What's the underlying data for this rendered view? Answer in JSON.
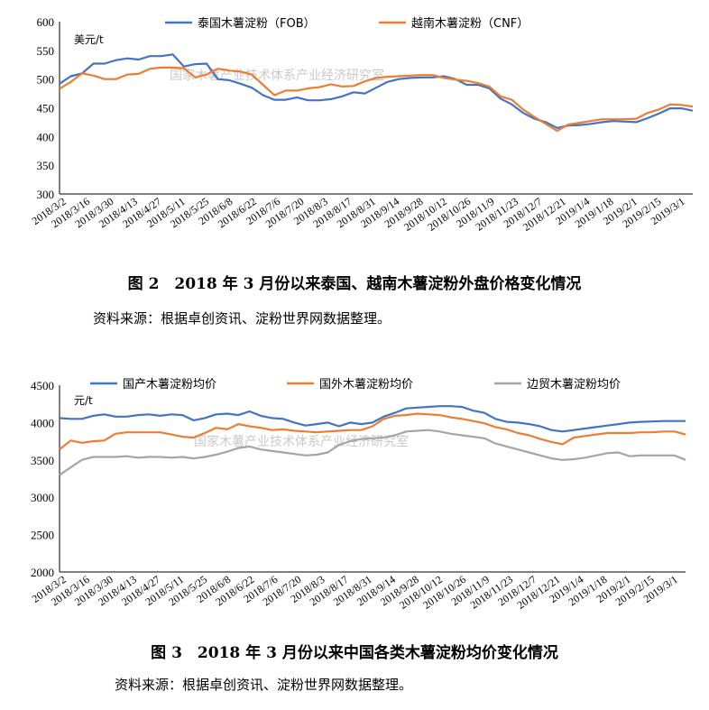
{
  "chart_data": [
    {
      "type": "line",
      "title": "",
      "unit": "美元/t",
      "ylim": [
        300,
        600
      ],
      "yticks": [
        300,
        350,
        400,
        450,
        500,
        550,
        600
      ],
      "xticks": [
        "2018/3/2",
        "2018/3/16",
        "2018/3/30",
        "2018/4/13",
        "2018/4/27",
        "2018/5/11",
        "2018/5/25",
        "2018/6/8",
        "2018/6/22",
        "2018/7/6",
        "2018/7/20",
        "2018/8/3",
        "2018/8/17",
        "2018/8/31",
        "2018/9/14",
        "2018/9/28",
        "2018/10/12",
        "2018/10/26",
        "2018/11/9",
        "2018/11/23",
        "2018/12/7",
        "2018/12/21",
        "2019/1/4",
        "2019/1/18",
        "2019/2/1",
        "2019/2/15",
        "2019/3/1"
      ],
      "legend_position": "top",
      "watermark": "国家木薯产业技术体系产业经济研究室",
      "series": [
        {
          "name": "泰国木薯淀粉（FOB）",
          "color": "#4472C4",
          "values": [
            492,
            505,
            510,
            527,
            527,
            533,
            536,
            534,
            540,
            540,
            543,
            522,
            526,
            527,
            500,
            498,
            492,
            485,
            472,
            464,
            464,
            468,
            463,
            463,
            465,
            470,
            477,
            475,
            485,
            495,
            500,
            502,
            503,
            503,
            505,
            500,
            490,
            490,
            484,
            466,
            456,
            441,
            431,
            425,
            415,
            419,
            420,
            422,
            425,
            427,
            426,
            425,
            432,
            440,
            449,
            449,
            445
          ]
        },
        {
          "name": "越南木薯淀粉（CNF）",
          "color": "#ED7D31",
          "values": [
            483,
            495,
            510,
            506,
            500,
            500,
            508,
            509,
            518,
            520,
            520,
            519,
            503,
            508,
            518,
            515,
            513,
            508,
            490,
            472,
            480,
            480,
            484,
            486,
            491,
            487,
            488,
            496,
            502,
            504,
            505,
            506,
            507,
            507,
            502,
            499,
            497,
            493,
            487,
            470,
            464,
            447,
            434,
            422,
            410,
            421,
            424,
            427,
            430,
            430,
            430,
            431,
            441,
            447,
            456,
            455,
            452
          ]
        }
      ]
    },
    {
      "type": "line",
      "title": "",
      "unit": "元/t",
      "ylim": [
        2000,
        4500
      ],
      "yticks": [
        2000,
        2500,
        3000,
        3500,
        4000,
        4500
      ],
      "xticks": [
        "2018/3/2",
        "2018/3/16",
        "2018/3/30",
        "2018/4/13",
        "2018/4/27",
        "2018/5/11",
        "2018/5/25",
        "2018/6/8",
        "2018/6/22",
        "2018/7/6",
        "2018/7/20",
        "2018/8/3",
        "2018/8/17",
        "2018/8/31",
        "2018/9/14",
        "2018/9/28",
        "2018/10/12",
        "2018/10/26",
        "2018/11/9",
        "2018/11/23",
        "2018/12/7",
        "2018/12/21",
        "2019/1/4",
        "2019/1/18",
        "2019/2/1",
        "2019/2/15",
        "2019/3/1"
      ],
      "legend_position": "top",
      "watermark": "国家木薯产业技术体系产业经济研究室",
      "series": [
        {
          "name": "国产木薯淀粉均价",
          "color": "#4472C4",
          "values": [
            4060,
            4050,
            4050,
            4090,
            4110,
            4080,
            4080,
            4100,
            4110,
            4090,
            4110,
            4100,
            4030,
            4060,
            4110,
            4120,
            4100,
            4150,
            4090,
            4060,
            4050,
            4000,
            3960,
            3980,
            4000,
            3950,
            4000,
            3980,
            4000,
            4080,
            4130,
            4190,
            4200,
            4210,
            4220,
            4220,
            4210,
            4160,
            4130,
            4050,
            4010,
            4000,
            3980,
            3950,
            3900,
            3880,
            3900,
            3920,
            3940,
            3960,
            3980,
            4000,
            4010,
            4015,
            4020,
            4020,
            4020
          ]
        },
        {
          "name": "国外木薯淀粉均价",
          "color": "#ED7D31",
          "values": [
            3640,
            3760,
            3730,
            3750,
            3760,
            3850,
            3870,
            3870,
            3870,
            3870,
            3840,
            3810,
            3800,
            3860,
            3930,
            3910,
            3980,
            3950,
            3930,
            3900,
            3910,
            3890,
            3880,
            3870,
            3880,
            3890,
            3900,
            3900,
            3950,
            4050,
            4090,
            4100,
            4120,
            4110,
            4100,
            4070,
            4050,
            4020,
            3990,
            3940,
            3910,
            3860,
            3830,
            3780,
            3740,
            3710,
            3800,
            3820,
            3840,
            3860,
            3860,
            3860,
            3870,
            3870,
            3880,
            3880,
            3840
          ]
        },
        {
          "name": "边贸木薯淀粉均价",
          "color": "#A5A5A5",
          "values": [
            3300,
            3400,
            3500,
            3540,
            3540,
            3540,
            3550,
            3530,
            3540,
            3540,
            3530,
            3540,
            3520,
            3540,
            3570,
            3610,
            3660,
            3680,
            3640,
            3620,
            3600,
            3580,
            3560,
            3570,
            3600,
            3700,
            3750,
            3780,
            3790,
            3800,
            3830,
            3880,
            3890,
            3900,
            3880,
            3850,
            3830,
            3810,
            3790,
            3720,
            3680,
            3640,
            3600,
            3560,
            3520,
            3500,
            3510,
            3530,
            3560,
            3590,
            3600,
            3550,
            3560,
            3560,
            3560,
            3560,
            3500
          ]
        }
      ]
    }
  ],
  "figure2": {
    "caption": "图 2　2018 年 3 月份以来泰国、越南木薯淀粉外盘价格变化情况",
    "source": "资料来源：根据卓创资讯、淀粉世界网数据整理。"
  },
  "figure3": {
    "caption": "图 3　2018 年 3 月份以来中国各类木薯淀粉均价变化情况",
    "source": "资料来源：根据卓创资讯、淀粉世界网数据整理。"
  }
}
